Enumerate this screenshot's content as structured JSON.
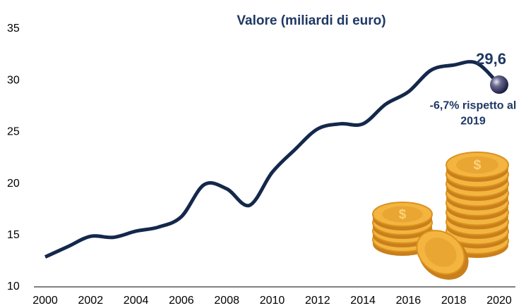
{
  "chart_data": {
    "type": "line",
    "title": "Valore (miliardi  di euro)",
    "x": [
      2000,
      2001,
      2002,
      2003,
      2004,
      2005,
      2006,
      2007,
      2008,
      2009,
      2010,
      2011,
      2012,
      2013,
      2014,
      2015,
      2016,
      2017,
      2018,
      2019,
      2020
    ],
    "series": [
      {
        "color": "#14284b",
        "values": [
          12.9,
          13.9,
          14.9,
          14.8,
          15.4,
          15.8,
          16.8,
          19.9,
          19.5,
          17.9,
          21.1,
          23.3,
          25.3,
          25.8,
          25.8,
          27.7,
          28.9,
          31.0,
          31.5,
          31.7,
          29.6
        ],
        "value_labels": [
          null,
          null,
          null,
          null,
          null,
          null,
          null,
          null,
          null,
          null,
          null,
          null,
          null,
          null,
          null,
          null,
          null,
          null,
          null,
          null,
          "29,6"
        ]
      }
    ],
    "annotation": [
      "-6,7% rispetto al",
      "2019"
    ],
    "xlim": [
      2000,
      2020
    ],
    "xticks": [
      2000,
      2002,
      2004,
      2006,
      2008,
      2010,
      2012,
      2014,
      2016,
      2018,
      2020
    ],
    "ylim": [
      10,
      35
    ],
    "yticks": [
      10,
      15,
      20,
      25,
      30,
      35
    ],
    "grid": false
  }
}
